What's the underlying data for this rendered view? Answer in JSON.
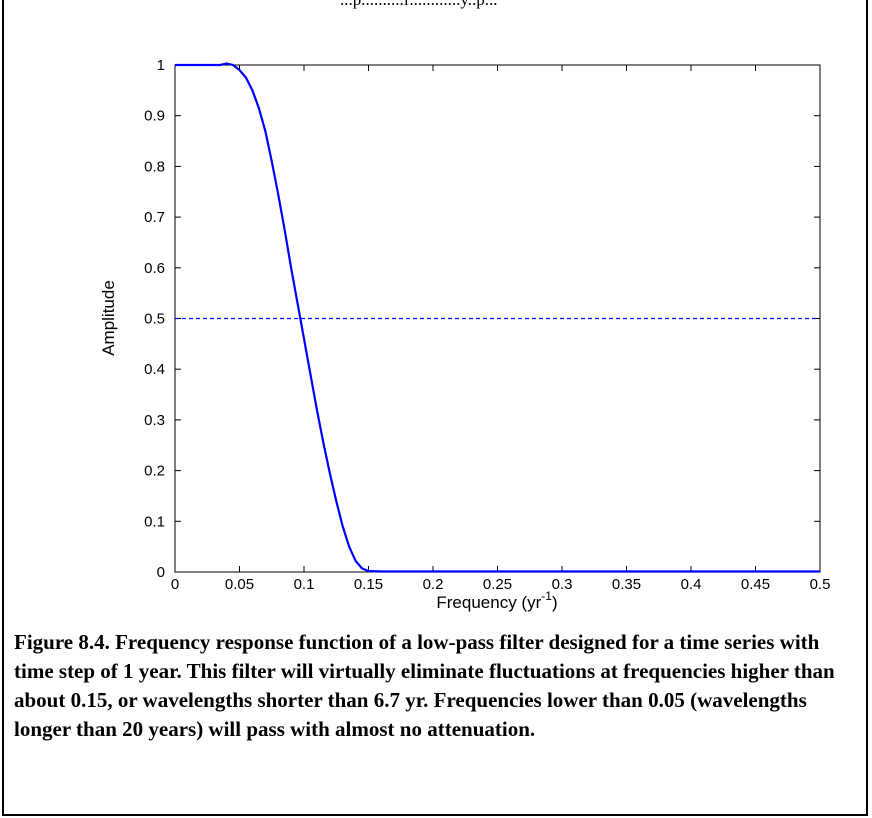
{
  "header_fragment": "...p..........f............y..p...",
  "chart_data": {
    "type": "line",
    "xlabel": "Frequency (yr",
    "xlabel_superscript": "-1",
    "xlabel_suffix": ")",
    "ylabel": "Amplitude",
    "xlim": [
      0,
      0.5
    ],
    "ylim": [
      0,
      1
    ],
    "x_ticks": [
      "0",
      "0.05",
      "0.1",
      "0.15",
      "0.2",
      "0.25",
      "0.3",
      "0.35",
      "0.4",
      "0.45",
      "0.5"
    ],
    "y_ticks": [
      "0",
      "0.1",
      "0.2",
      "0.3",
      "0.4",
      "0.5",
      "0.6",
      "0.7",
      "0.8",
      "0.9",
      "1"
    ],
    "grid": false,
    "series": [
      {
        "color": "#0000ff",
        "style": "solid",
        "x": [
          0,
          0.02,
          0.035,
          0.04,
          0.045,
          0.05,
          0.055,
          0.06,
          0.065,
          0.07,
          0.075,
          0.08,
          0.085,
          0.09,
          0.095,
          0.1,
          0.105,
          0.11,
          0.115,
          0.12,
          0.125,
          0.13,
          0.135,
          0.14,
          0.145,
          0.15,
          0.16,
          0.2,
          0.3,
          0.4,
          0.5
        ],
        "y": [
          1,
          1,
          1,
          1.003,
          1.0,
          0.99,
          0.975,
          0.95,
          0.915,
          0.87,
          0.81,
          0.745,
          0.675,
          0.6,
          0.53,
          0.46,
          0.39,
          0.32,
          0.255,
          0.195,
          0.14,
          0.09,
          0.05,
          0.022,
          0.007,
          0.002,
          0.001,
          0.001,
          0.001,
          0.001,
          0.001
        ]
      },
      {
        "color": "#0000ff",
        "style": "dashed",
        "x": [
          0,
          0.5
        ],
        "y": [
          0.5,
          0.5
        ]
      }
    ]
  },
  "caption": "Figure 8.4.  Frequency response function of a low-pass filter designed for a time series with time step of 1 year.  This filter will virtually eliminate fluctuations at frequencies higher than about 0.15, or wavelengths shorter than 6.7 yr.  Frequencies lower than 0.05 (wavelengths longer than 20 years) will pass with almost no attenuation."
}
